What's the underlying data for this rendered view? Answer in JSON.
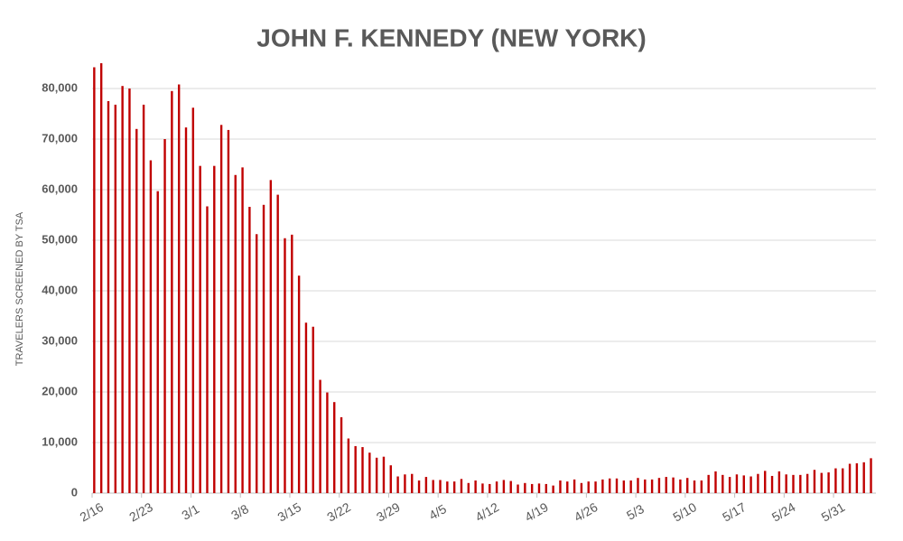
{
  "chart_data": {
    "type": "bar",
    "title": "JOHN F. KENNEDY (NEW YORK)",
    "y_label": "TRAVELERS SCREENED BY TSA",
    "categories": [
      "2/16",
      null,
      null,
      null,
      null,
      null,
      null,
      "2/23",
      null,
      null,
      null,
      null,
      null,
      null,
      "3/1",
      null,
      null,
      null,
      null,
      null,
      null,
      "3/8",
      null,
      null,
      null,
      null,
      null,
      null,
      "3/15",
      null,
      null,
      null,
      null,
      null,
      null,
      "3/22",
      null,
      null,
      null,
      null,
      null,
      null,
      "3/29",
      null,
      null,
      null,
      null,
      null,
      null,
      "4/5",
      null,
      null,
      null,
      null,
      null,
      null,
      "4/12",
      null,
      null,
      null,
      null,
      null,
      null,
      "4/19",
      null,
      null,
      null,
      null,
      null,
      null,
      "4/26",
      null,
      null,
      null,
      null,
      null,
      null,
      "5/3",
      null,
      null,
      null,
      null,
      null,
      null,
      "5/10",
      null,
      null,
      null,
      null,
      null,
      null,
      "5/17",
      null,
      null,
      null,
      null,
      null,
      null,
      "5/24",
      null,
      null,
      null,
      null,
      null,
      null,
      "5/31",
      null,
      null,
      null,
      null,
      null
    ],
    "values": [
      84200,
      85000,
      77500,
      76800,
      80500,
      80000,
      72000,
      76800,
      65800,
      59700,
      70000,
      79500,
      80800,
      72300,
      76200,
      64700,
      56700,
      64700,
      72800,
      71800,
      62900,
      64400,
      56600,
      51200,
      57000,
      61900,
      59000,
      50400,
      51100,
      43000,
      33700,
      32900,
      22400,
      19900,
      18000,
      15000,
      10800,
      9300,
      9100,
      8000,
      7000,
      7200,
      5500,
      3300,
      3700,
      3800,
      2500,
      3200,
      2600,
      2600,
      2300,
      2300,
      2800,
      2000,
      2500,
      1900,
      1800,
      2300,
      2600,
      2400,
      1700,
      2000,
      1800,
      1900,
      1800,
      1500,
      2500,
      2300,
      2700,
      2000,
      2300,
      2300,
      2700,
      2900,
      2900,
      2500,
      2500,
      3000,
      2700,
      2700,
      3000,
      3200,
      3100,
      2700,
      3000,
      2500,
      2500,
      3600,
      4300,
      3600,
      3200,
      3700,
      3500,
      3300,
      3800,
      4400,
      3400,
      4300,
      3700,
      3600,
      3600,
      3800,
      4600,
      4000,
      4100,
      4900,
      4900,
      5800,
      5900,
      6100,
      6900
    ],
    "color": "#c00000",
    "ylim": [
      0,
      85000
    ],
    "yticks": [
      0,
      {
        "value": 10000,
        "label": "10,000"
      },
      {
        "value": 20000,
        "label": "20,000"
      },
      {
        "value": 30000,
        "label": "30,000"
      },
      {
        "value": 40000,
        "label": "40,000"
      },
      {
        "value": 50000,
        "label": "50,000"
      },
      {
        "value": 60000,
        "label": "60,000"
      },
      {
        "value": 70000,
        "label": "70,000"
      },
      {
        "value": 80000,
        "label": "80,000"
      }
    ],
    "grid": true
  }
}
